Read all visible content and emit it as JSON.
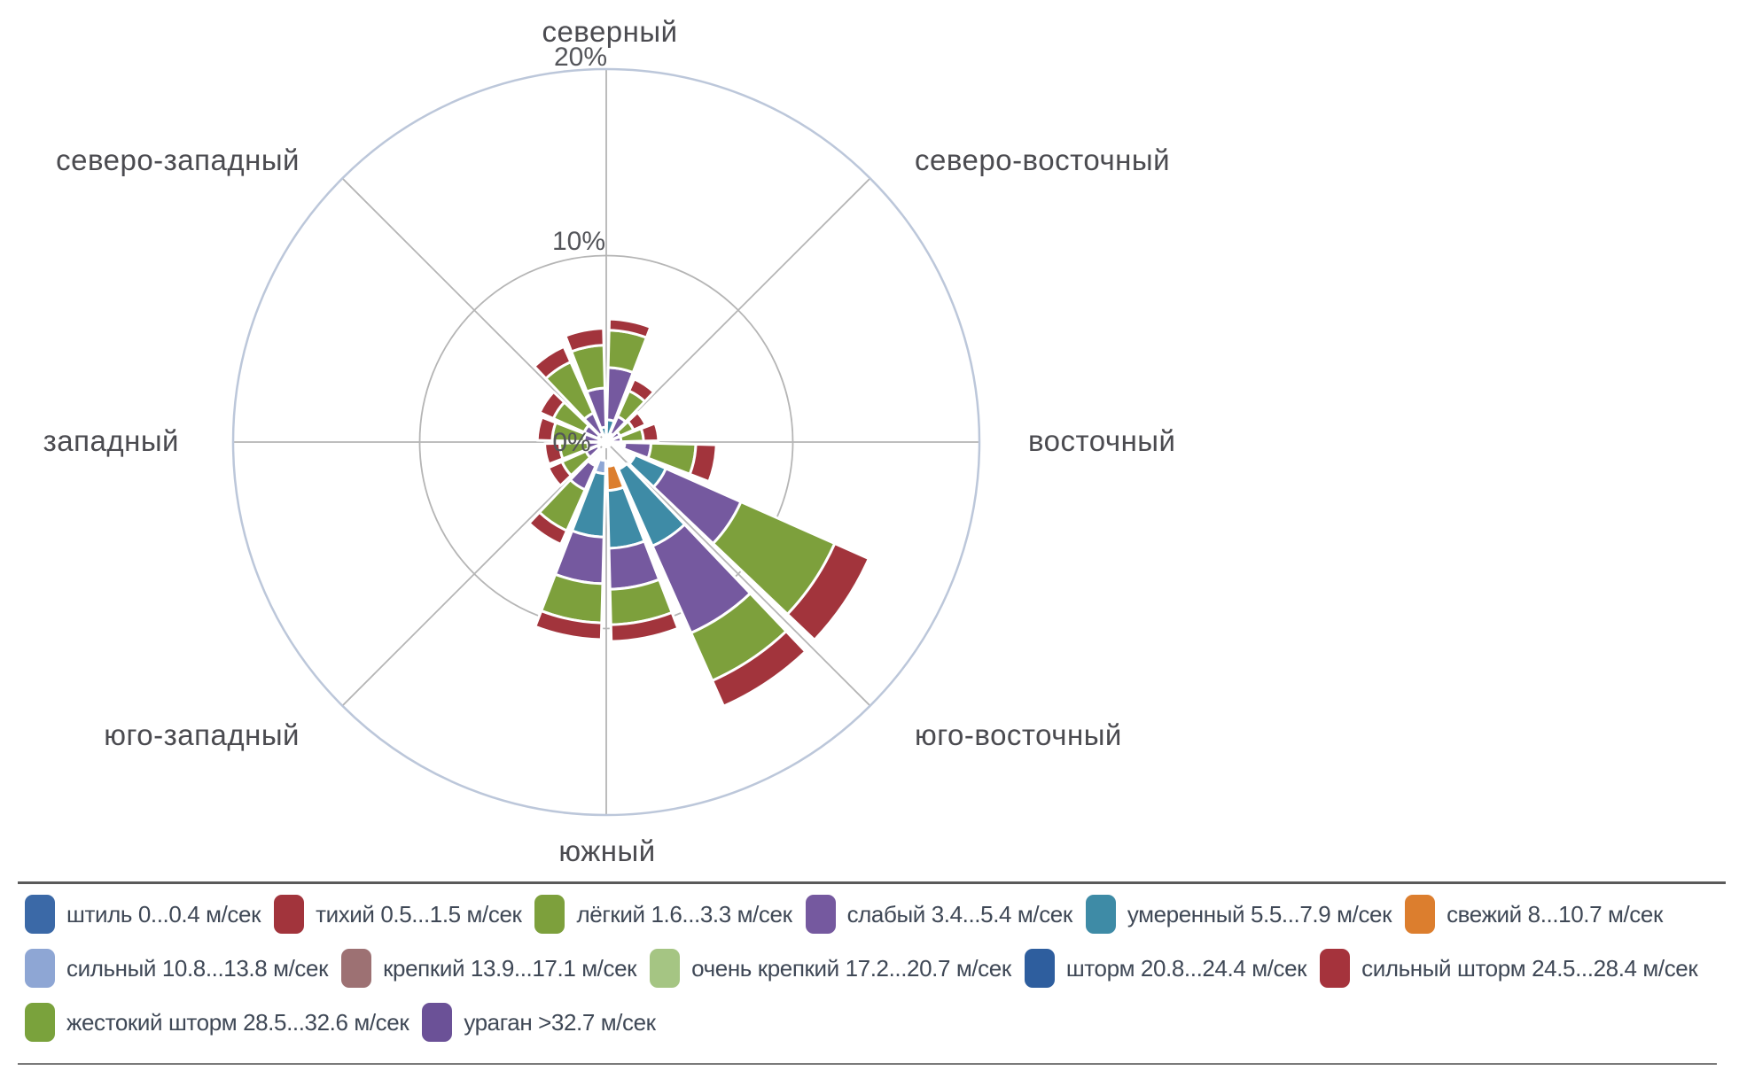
{
  "chart_data": {
    "type": "bar",
    "subtype": "polar-stacked-wind-rose",
    "units": "percent",
    "axis": {
      "min": 0,
      "max": 20,
      "rings": [
        {
          "value": 0,
          "label": "0%"
        },
        {
          "value": 10,
          "label": "10%"
        },
        {
          "value": 20,
          "label": "20%"
        }
      ]
    },
    "direction_labels": [
      {
        "angle": 0,
        "text": "северный"
      },
      {
        "angle": 45,
        "text": "северо-восточный"
      },
      {
        "angle": 90,
        "text": "восточный"
      },
      {
        "angle": 135,
        "text": "юго-восточный"
      },
      {
        "angle": 180,
        "text": "южный"
      },
      {
        "angle": 225,
        "text": "юго-западный"
      },
      {
        "angle": 270,
        "text": "западный"
      },
      {
        "angle": 315,
        "text": "северо-западный"
      }
    ],
    "categories": [
      {
        "key": "calm",
        "label": "штиль 0...0.4 м/сек",
        "color": "#3b69a7"
      },
      {
        "key": "quiet",
        "label": "тихий 0.5...1.5 м/сек",
        "color": "#a2343c"
      },
      {
        "key": "light",
        "label": "лёгкий 1.6...3.3 м/сек",
        "color": "#7da03c"
      },
      {
        "key": "weak",
        "label": "слабый 3.4...5.4 м/сек",
        "color": "#75599f"
      },
      {
        "key": "moderate",
        "label": "умеренный 5.5...7.9 м/сек",
        "color": "#3e8ba6"
      },
      {
        "key": "fresh",
        "label": "свежий 8...10.7 м/сек",
        "color": "#dc7e2e"
      },
      {
        "key": "strong",
        "label": "сильный 10.8...13.8 м/сек",
        "color": "#8ea6d4"
      },
      {
        "key": "firm",
        "label": "крепкий 13.9...17.1 м/сек",
        "color": "#9d7173"
      },
      {
        "key": "very_firm",
        "label": "очень крепкий 17.2...20.7 м/сек",
        "color": "#a5c583"
      },
      {
        "key": "storm",
        "label": "шторм 20.8...24.4 м/сек",
        "color": "#2e5e9e"
      },
      {
        "key": "strong_storm",
        "label": "сильный шторм 24.5...28.4 м/сек",
        "color": "#a5333c"
      },
      {
        "key": "severe_storm",
        "label": "жестокий шторм 28.5...32.6 м/сек",
        "color": "#7aa23c"
      },
      {
        "key": "hurricane",
        "label": "ураган >32.7 м/сек",
        "color": "#6b5197"
      }
    ],
    "wedges": [
      {
        "sector": "N-NNE",
        "center_deg": 11.25,
        "segments": [
          [
            "moderate",
            0.4,
            1.2
          ],
          [
            "weak",
            1.2,
            4.0
          ],
          [
            "light",
            4.0,
            6.0
          ],
          [
            "quiet",
            6.0,
            6.6
          ]
        ]
      },
      {
        "sector": "NNE-NE",
        "center_deg": 33.75,
        "segments": [
          [
            "weak",
            0.5,
            1.5
          ],
          [
            "light",
            1.5,
            3.0
          ],
          [
            "quiet",
            3.0,
            3.7
          ]
        ]
      },
      {
        "sector": "NE-ENE",
        "center_deg": 56.25,
        "segments": [
          [
            "weak",
            0.3,
            0.8
          ],
          [
            "light",
            0.8,
            1.6
          ],
          [
            "quiet",
            1.6,
            2.3
          ]
        ]
      },
      {
        "sector": "ENE-E",
        "center_deg": 78.75,
        "segments": [
          [
            "weak",
            0.3,
            0.8
          ],
          [
            "light",
            0.8,
            2.0
          ],
          [
            "quiet",
            2.0,
            2.8
          ]
        ]
      },
      {
        "sector": "E-ESE",
        "center_deg": 101.25,
        "segments": [
          [
            "weak",
            1.0,
            2.4
          ],
          [
            "light",
            2.4,
            4.8
          ],
          [
            "quiet",
            4.8,
            5.9
          ]
        ]
      },
      {
        "sector": "ESE-SE",
        "center_deg": 123.75,
        "segments": [
          [
            "moderate",
            1.7,
            3.5
          ],
          [
            "weak",
            3.5,
            7.9
          ],
          [
            "light",
            7.9,
            13.4
          ],
          [
            "quiet",
            13.4,
            15.4
          ]
        ]
      },
      {
        "sector": "SE-SSE",
        "center_deg": 146.25,
        "segments": [
          [
            "moderate",
            1.6,
            6.1
          ],
          [
            "weak",
            6.1,
            11.2
          ],
          [
            "light",
            11.2,
            14.0
          ],
          [
            "quiet",
            14.0,
            15.5
          ]
        ]
      },
      {
        "sector": "SSE-S",
        "center_deg": 168.75,
        "segments": [
          [
            "fresh",
            1.3,
            2.6
          ],
          [
            "moderate",
            2.6,
            5.7
          ],
          [
            "weak",
            5.7,
            7.9
          ],
          [
            "light",
            7.9,
            9.8
          ],
          [
            "quiet",
            9.8,
            10.7
          ]
        ]
      },
      {
        "sector": "S-SSW",
        "center_deg": 191.25,
        "segments": [
          [
            "strong",
            1.0,
            1.7
          ],
          [
            "moderate",
            1.7,
            5.1
          ],
          [
            "weak",
            5.1,
            7.6
          ],
          [
            "light",
            7.6,
            9.7
          ],
          [
            "quiet",
            9.7,
            10.6
          ]
        ]
      },
      {
        "sector": "SSW-SW",
        "center_deg": 213.75,
        "segments": [
          [
            "weak",
            1.4,
            2.8
          ],
          [
            "light",
            2.8,
            5.2
          ],
          [
            "quiet",
            5.2,
            6.0
          ]
        ]
      },
      {
        "sector": "SW-WSW",
        "center_deg": 236.25,
        "segments": [
          [
            "weak",
            0.5,
            1.2
          ],
          [
            "light",
            1.2,
            2.6
          ],
          [
            "quiet",
            2.6,
            3.4
          ]
        ]
      },
      {
        "sector": "WSW-W",
        "center_deg": 258.75,
        "segments": [
          [
            "weak",
            0.4,
            1.0
          ],
          [
            "light",
            1.0,
            2.5
          ],
          [
            "quiet",
            2.5,
            3.3
          ]
        ]
      },
      {
        "sector": "W-WNW",
        "center_deg": 281.25,
        "segments": [
          [
            "weak",
            0.4,
            1.2
          ],
          [
            "light",
            1.2,
            2.9
          ],
          [
            "quiet",
            2.9,
            3.7
          ]
        ]
      },
      {
        "sector": "WNW-NW",
        "center_deg": 303.75,
        "segments": [
          [
            "weak",
            0.5,
            1.3
          ],
          [
            "light",
            1.3,
            3.1
          ],
          [
            "quiet",
            3.1,
            3.9
          ]
        ]
      },
      {
        "sector": "NW-NNW",
        "center_deg": 326.25,
        "segments": [
          [
            "weak",
            0.5,
            1.7
          ],
          [
            "light",
            1.7,
            4.7
          ],
          [
            "quiet",
            4.7,
            5.6
          ]
        ]
      },
      {
        "sector": "NNW-N",
        "center_deg": 348.75,
        "segments": [
          [
            "moderate",
            0.3,
            0.8
          ],
          [
            "weak",
            0.8,
            2.9
          ],
          [
            "light",
            2.9,
            5.2
          ],
          [
            "quiet",
            5.2,
            6.1
          ]
        ]
      }
    ],
    "grid": {
      "radial_lines_every_deg": 45,
      "outer_circle_color": "#bcc7da",
      "inner_circle_color": "#b5b5b5"
    }
  },
  "legend": {
    "rows": [
      [
        "calm",
        "quiet",
        "light",
        "weak",
        "moderate",
        "fresh"
      ],
      [
        "strong",
        "firm",
        "very_firm",
        "storm",
        "strong_storm"
      ],
      [
        "severe_storm",
        "hurricane"
      ]
    ]
  }
}
